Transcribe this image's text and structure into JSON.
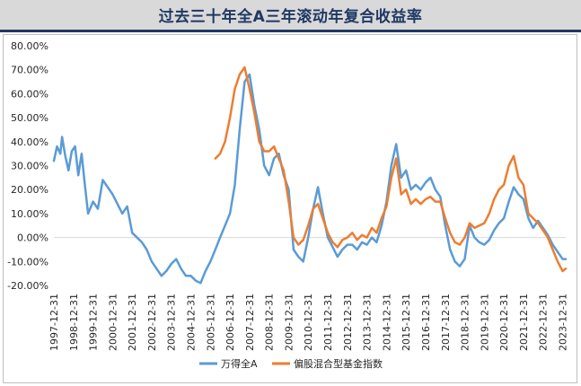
{
  "chart_data": {
    "type": "line",
    "title": "过去三十年全A三年滚动年复合收益率",
    "xlabel": "",
    "ylabel": "",
    "ylim": [
      -0.2,
      0.8
    ],
    "y_ticks": [
      "80.00%",
      "70.00%",
      "60.00%",
      "50.00%",
      "40.00%",
      "30.00%",
      "20.00%",
      "10.00%",
      "0.00%",
      "-10.00%",
      "-20.00%"
    ],
    "x_ticks": [
      "1997-12-31",
      "1998-12-31",
      "1999-12-31",
      "2000-12-31",
      "2001-12-31",
      "2002-12-31",
      "2003-12-31",
      "2004-12-31",
      "2005-12-31",
      "2006-12-31",
      "2007-12-31",
      "2008-12-31",
      "2009-12-31",
      "2010-12-31",
      "2011-12-31",
      "2012-12-31",
      "2013-12-31",
      "2014-12-31",
      "2015-12-31",
      "2016-12-31",
      "2017-12-31",
      "2018-12-31",
      "2019-12-31",
      "2020-12-31",
      "2021-12-31",
      "2022-12-31",
      "2023-12-31"
    ],
    "grid": "horizontal-zero-line",
    "legend_position": "bottom",
    "series": [
      {
        "name": "万得全A",
        "color": "#5b9bd5",
        "points": [
          [
            "1997-12-31",
            0.32
          ],
          [
            "1998-02-28",
            0.38
          ],
          [
            "1998-04-30",
            0.35
          ],
          [
            "1998-05-31",
            0.42
          ],
          [
            "1998-07-31",
            0.34
          ],
          [
            "1998-09-30",
            0.28
          ],
          [
            "1998-11-30",
            0.36
          ],
          [
            "1999-01-31",
            0.38
          ],
          [
            "1999-03-31",
            0.26
          ],
          [
            "1999-05-31",
            0.35
          ],
          [
            "1999-07-31",
            0.22
          ],
          [
            "1999-09-30",
            0.1
          ],
          [
            "1999-12-31",
            0.15
          ],
          [
            "2000-03-31",
            0.12
          ],
          [
            "2000-06-30",
            0.24
          ],
          [
            "2000-09-30",
            0.21
          ],
          [
            "2000-12-31",
            0.18
          ],
          [
            "2001-03-31",
            0.14
          ],
          [
            "2001-06-30",
            0.1
          ],
          [
            "2001-09-30",
            0.13
          ],
          [
            "2001-12-31",
            0.02
          ],
          [
            "2002-03-31",
            0.0
          ],
          [
            "2002-06-30",
            -0.02
          ],
          [
            "2002-09-30",
            -0.05
          ],
          [
            "2002-12-31",
            -0.1
          ],
          [
            "2003-03-31",
            -0.13
          ],
          [
            "2003-06-30",
            -0.16
          ],
          [
            "2003-09-30",
            -0.14
          ],
          [
            "2003-12-31",
            -0.11
          ],
          [
            "2004-03-31",
            -0.09
          ],
          [
            "2004-06-30",
            -0.13
          ],
          [
            "2004-09-30",
            -0.16
          ],
          [
            "2004-12-31",
            -0.16
          ],
          [
            "2005-03-31",
            -0.18
          ],
          [
            "2005-06-30",
            -0.19
          ],
          [
            "2005-09-30",
            -0.14
          ],
          [
            "2005-12-31",
            -0.1
          ],
          [
            "2006-03-31",
            -0.05
          ],
          [
            "2006-06-30",
            0.0
          ],
          [
            "2006-09-30",
            0.05
          ],
          [
            "2006-12-31",
            0.1
          ],
          [
            "2007-03-31",
            0.22
          ],
          [
            "2007-06-30",
            0.45
          ],
          [
            "2007-09-30",
            0.65
          ],
          [
            "2007-12-31",
            0.68
          ],
          [
            "2008-03-31",
            0.55
          ],
          [
            "2008-06-30",
            0.45
          ],
          [
            "2008-09-30",
            0.3
          ],
          [
            "2008-12-31",
            0.26
          ],
          [
            "2009-03-31",
            0.33
          ],
          [
            "2009-06-30",
            0.35
          ],
          [
            "2009-09-30",
            0.26
          ],
          [
            "2009-12-31",
            0.2
          ],
          [
            "2010-03-31",
            -0.05
          ],
          [
            "2010-06-30",
            -0.08
          ],
          [
            "2010-09-30",
            -0.1
          ],
          [
            "2010-12-31",
            0.0
          ],
          [
            "2011-03-31",
            0.12
          ],
          [
            "2011-06-30",
            0.21
          ],
          [
            "2011-09-30",
            0.1
          ],
          [
            "2011-12-31",
            0.0
          ],
          [
            "2012-03-31",
            -0.04
          ],
          [
            "2012-06-30",
            -0.08
          ],
          [
            "2012-09-30",
            -0.05
          ],
          [
            "2012-12-31",
            -0.03
          ],
          [
            "2013-03-31",
            -0.03
          ],
          [
            "2013-06-30",
            -0.05
          ],
          [
            "2013-09-30",
            -0.02
          ],
          [
            "2013-12-31",
            -0.03
          ],
          [
            "2014-03-31",
            0.0
          ],
          [
            "2014-06-30",
            -0.02
          ],
          [
            "2014-09-30",
            0.05
          ],
          [
            "2014-12-31",
            0.15
          ],
          [
            "2015-03-31",
            0.3
          ],
          [
            "2015-06-30",
            0.39
          ],
          [
            "2015-09-30",
            0.25
          ],
          [
            "2015-12-31",
            0.28
          ],
          [
            "2016-03-31",
            0.2
          ],
          [
            "2016-06-30",
            0.22
          ],
          [
            "2016-09-30",
            0.2
          ],
          [
            "2016-12-31",
            0.23
          ],
          [
            "2017-03-31",
            0.25
          ],
          [
            "2017-06-30",
            0.2
          ],
          [
            "2017-09-30",
            0.17
          ],
          [
            "2017-12-31",
            0.05
          ],
          [
            "2018-03-31",
            -0.05
          ],
          [
            "2018-06-30",
            -0.1
          ],
          [
            "2018-09-30",
            -0.12
          ],
          [
            "2018-12-31",
            -0.09
          ],
          [
            "2019-03-31",
            0.05
          ],
          [
            "2019-06-30",
            0.0
          ],
          [
            "2019-09-30",
            -0.02
          ],
          [
            "2019-12-31",
            -0.03
          ],
          [
            "2020-03-31",
            -0.01
          ],
          [
            "2020-06-30",
            0.03
          ],
          [
            "2020-09-30",
            0.06
          ],
          [
            "2020-12-31",
            0.08
          ],
          [
            "2021-03-31",
            0.15
          ],
          [
            "2021-06-30",
            0.21
          ],
          [
            "2021-09-30",
            0.18
          ],
          [
            "2021-12-31",
            0.16
          ],
          [
            "2022-03-31",
            0.08
          ],
          [
            "2022-06-30",
            0.04
          ],
          [
            "2022-09-30",
            0.07
          ],
          [
            "2022-12-31",
            0.04
          ],
          [
            "2023-03-31",
            0.01
          ],
          [
            "2023-06-30",
            -0.03
          ],
          [
            "2023-09-30",
            -0.06
          ],
          [
            "2023-12-31",
            -0.09
          ],
          [
            "2024-02-29",
            -0.09
          ]
        ]
      },
      {
        "name": "偏股混合型基金指数",
        "color": "#ed7d31",
        "points": [
          [
            "2006-03-31",
            0.33
          ],
          [
            "2006-06-30",
            0.35
          ],
          [
            "2006-09-30",
            0.4
          ],
          [
            "2006-12-31",
            0.5
          ],
          [
            "2007-03-31",
            0.62
          ],
          [
            "2007-06-30",
            0.68
          ],
          [
            "2007-09-30",
            0.71
          ],
          [
            "2007-12-31",
            0.62
          ],
          [
            "2008-03-31",
            0.52
          ],
          [
            "2008-06-30",
            0.4
          ],
          [
            "2008-09-30",
            0.36
          ],
          [
            "2008-12-31",
            0.36
          ],
          [
            "2009-03-31",
            0.38
          ],
          [
            "2009-06-30",
            0.33
          ],
          [
            "2009-09-30",
            0.28
          ],
          [
            "2009-12-31",
            0.15
          ],
          [
            "2010-03-31",
            0.0
          ],
          [
            "2010-06-30",
            -0.03
          ],
          [
            "2010-09-30",
            -0.01
          ],
          [
            "2010-12-31",
            0.05
          ],
          [
            "2011-03-31",
            0.12
          ],
          [
            "2011-06-30",
            0.14
          ],
          [
            "2011-09-30",
            0.08
          ],
          [
            "2011-12-31",
            0.02
          ],
          [
            "2012-03-31",
            -0.02
          ],
          [
            "2012-06-30",
            -0.04
          ],
          [
            "2012-09-30",
            -0.01
          ],
          [
            "2012-12-31",
            0.0
          ],
          [
            "2013-03-31",
            0.02
          ],
          [
            "2013-06-30",
            -0.01
          ],
          [
            "2013-09-30",
            0.01
          ],
          [
            "2013-12-31",
            0.0
          ],
          [
            "2014-03-31",
            0.04
          ],
          [
            "2014-06-30",
            0.02
          ],
          [
            "2014-09-30",
            0.08
          ],
          [
            "2014-12-31",
            0.13
          ],
          [
            "2015-03-31",
            0.25
          ],
          [
            "2015-06-30",
            0.33
          ],
          [
            "2015-09-30",
            0.18
          ],
          [
            "2015-12-31",
            0.2
          ],
          [
            "2016-03-31",
            0.14
          ],
          [
            "2016-06-30",
            0.16
          ],
          [
            "2016-09-30",
            0.14
          ],
          [
            "2016-12-31",
            0.16
          ],
          [
            "2017-03-31",
            0.17
          ],
          [
            "2017-06-30",
            0.15
          ],
          [
            "2017-09-30",
            0.15
          ],
          [
            "2017-12-31",
            0.08
          ],
          [
            "2018-03-31",
            0.02
          ],
          [
            "2018-06-30",
            -0.02
          ],
          [
            "2018-09-30",
            -0.03
          ],
          [
            "2018-12-31",
            0.0
          ],
          [
            "2019-03-31",
            0.06
          ],
          [
            "2019-06-30",
            0.04
          ],
          [
            "2019-09-30",
            0.05
          ],
          [
            "2019-12-31",
            0.06
          ],
          [
            "2020-03-31",
            0.1
          ],
          [
            "2020-06-30",
            0.16
          ],
          [
            "2020-09-30",
            0.2
          ],
          [
            "2020-12-31",
            0.22
          ],
          [
            "2021-03-31",
            0.3
          ],
          [
            "2021-06-30",
            0.34
          ],
          [
            "2021-09-30",
            0.25
          ],
          [
            "2021-12-31",
            0.22
          ],
          [
            "2022-03-31",
            0.1
          ],
          [
            "2022-06-30",
            0.08
          ],
          [
            "2022-09-30",
            0.06
          ],
          [
            "2022-12-31",
            0.03
          ],
          [
            "2023-03-31",
            0.0
          ],
          [
            "2023-06-30",
            -0.05
          ],
          [
            "2023-09-30",
            -0.1
          ],
          [
            "2023-12-31",
            -0.14
          ],
          [
            "2024-02-29",
            -0.13
          ]
        ]
      }
    ]
  }
}
